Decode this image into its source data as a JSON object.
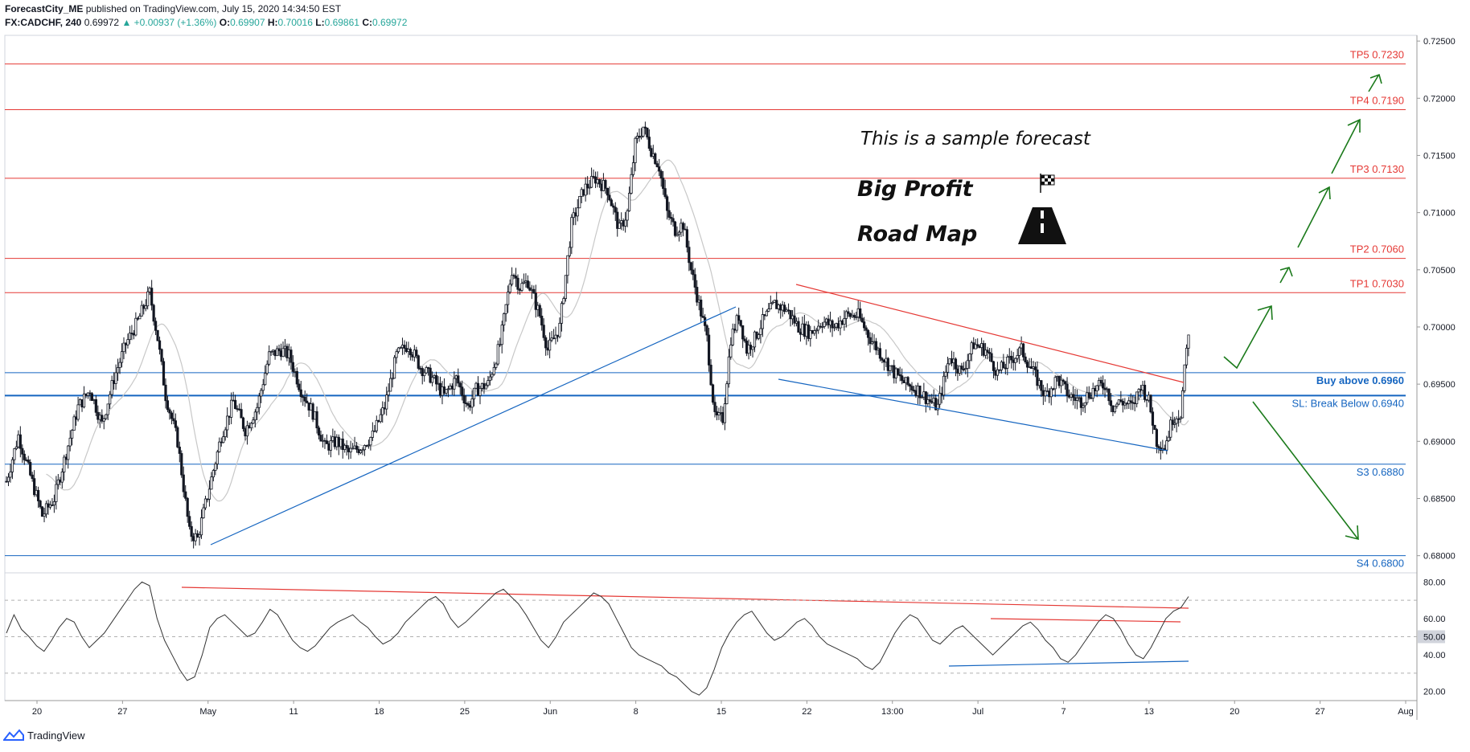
{
  "header": {
    "author": "ForecastCity_ME",
    "published": "published on TradingView.com, July 15, 2020 14:34:50 EST",
    "symbol": "FX:CADCHF, 240",
    "last": "0.69972",
    "change": "+0.00937 (+1.36%)",
    "o_label": "O:",
    "o": "0.69907",
    "h_label": "H:",
    "h": "0.70016",
    "l_label": "L:",
    "l": "0.69861",
    "c_label": "C:",
    "c": "0.69972"
  },
  "annotations": {
    "sample": "This is a sample forecast",
    "line1": "Big Profit",
    "line2": "Road Map"
  },
  "footer": {
    "brand": "TradingView"
  },
  "colors": {
    "red": "#e53935",
    "blue": "#1565c0",
    "green": "#1b7a1b",
    "up": "#26a69a",
    "candle": "#131722"
  },
  "chart_data": [
    {
      "type": "candlestick",
      "title": "FX:CADCHF, 240",
      "price_axis": {
        "range": [
          0.6785,
          0.7255
        ],
        "ticks": [
          "0.72500",
          "0.72000",
          "0.71500",
          "0.71000",
          "0.70500",
          "0.70000",
          "0.69500",
          "0.69000",
          "0.68500",
          "0.68000"
        ]
      },
      "time_axis": [
        "20",
        "27",
        "May",
        "11",
        "18",
        "25",
        "Jun",
        "8",
        "15",
        "22",
        "13:00",
        "Jul",
        "7",
        "13",
        "20",
        "27",
        "Aug"
      ],
      "levels": [
        {
          "label": "TP5 0.7230",
          "price": 0.723,
          "color": "red"
        },
        {
          "label": "TP4 0.7190",
          "price": 0.719,
          "color": "red"
        },
        {
          "label": "TP3 0.7130",
          "price": 0.713,
          "color": "red"
        },
        {
          "label": "TP2 0.7060",
          "price": 0.706,
          "color": "red"
        },
        {
          "label": "TP1 0.7030",
          "price": 0.703,
          "color": "red"
        },
        {
          "label": "Buy above 0.6960",
          "price": 0.696,
          "color": "blue"
        },
        {
          "label": "SL: Break Below 0.6940",
          "price": 0.694,
          "color": "blue"
        },
        {
          "label": "S3 0.6880",
          "price": 0.688,
          "color": "blue"
        },
        {
          "label": "S4 0.6800",
          "price": 0.68,
          "color": "blue"
        }
      ],
      "close_path": [
        [
          0,
          0.6865
        ],
        [
          6,
          0.6905
        ],
        [
          12,
          0.687
        ],
        [
          18,
          0.6835
        ],
        [
          24,
          0.685
        ],
        [
          30,
          0.689
        ],
        [
          36,
          0.693
        ],
        [
          42,
          0.6945
        ],
        [
          48,
          0.6915
        ],
        [
          54,
          0.6955
        ],
        [
          60,
          0.6985
        ],
        [
          66,
          0.7005
        ],
        [
          72,
          0.703
        ],
        [
          76,
          0.699
        ],
        [
          80,
          0.694
        ],
        [
          86,
          0.69
        ],
        [
          92,
          0.682
        ],
        [
          96,
          0.6815
        ],
        [
          102,
          0.686
        ],
        [
          108,
          0.6905
        ],
        [
          114,
          0.6935
        ],
        [
          120,
          0.691
        ],
        [
          126,
          0.693
        ],
        [
          132,
          0.6975
        ],
        [
          138,
          0.698
        ],
        [
          142,
          0.6975
        ],
        [
          148,
          0.6945
        ],
        [
          154,
          0.6925
        ],
        [
          160,
          0.6895
        ],
        [
          166,
          0.69
        ],
        [
          172,
          0.689
        ],
        [
          178,
          0.6895
        ],
        [
          184,
          0.6905
        ],
        [
          190,
          0.693
        ],
        [
          196,
          0.6975
        ],
        [
          202,
          0.6985
        ],
        [
          208,
          0.6965
        ],
        [
          214,
          0.6955
        ],
        [
          220,
          0.694
        ],
        [
          226,
          0.6955
        ],
        [
          232,
          0.693
        ],
        [
          236,
          0.6945
        ],
        [
          242,
          0.695
        ],
        [
          248,
          0.6985
        ],
        [
          254,
          0.705
        ],
        [
          258,
          0.7035
        ],
        [
          262,
          0.704
        ],
        [
          268,
          0.701
        ],
        [
          272,
          0.698
        ],
        [
          278,
          0.7
        ],
        [
          284,
          0.709
        ],
        [
          290,
          0.712
        ],
        [
          296,
          0.713
        ],
        [
          302,
          0.712
        ],
        [
          308,
          0.7085
        ],
        [
          312,
          0.71
        ],
        [
          316,
          0.716
        ],
        [
          320,
          0.7175
        ],
        [
          324,
          0.7155
        ],
        [
          328,
          0.714
        ],
        [
          332,
          0.71
        ],
        [
          336,
          0.7085
        ],
        [
          340,
          0.709
        ],
        [
          344,
          0.705
        ],
        [
          348,
          0.702
        ],
        [
          352,
          0.699
        ],
        [
          356,
          0.692
        ],
        [
          360,
          0.692
        ],
        [
          364,
          0.699
        ],
        [
          368,
          0.701
        ],
        [
          372,
          0.698
        ],
        [
          376,
          0.699
        ],
        [
          380,
          0.7005
        ],
        [
          386,
          0.702
        ],
        [
          392,
          0.7015
        ],
        [
          398,
          0.7
        ],
        [
          404,
          0.6995
        ],
        [
          410,
          0.7005
        ],
        [
          416,
          0.7
        ],
        [
          422,
          0.701
        ],
        [
          428,
          0.701
        ],
        [
          434,
          0.699
        ],
        [
          440,
          0.6975
        ],
        [
          446,
          0.696
        ],
        [
          452,
          0.695
        ],
        [
          458,
          0.6945
        ],
        [
          464,
          0.6935
        ],
        [
          468,
          0.693
        ],
        [
          474,
          0.6975
        ],
        [
          480,
          0.696
        ],
        [
          486,
          0.6985
        ],
        [
          492,
          0.698
        ],
        [
          498,
          0.696
        ],
        [
          504,
          0.697
        ],
        [
          510,
          0.698
        ],
        [
          516,
          0.696
        ],
        [
          522,
          0.694
        ],
        [
          528,
          0.6955
        ],
        [
          534,
          0.694
        ],
        [
          540,
          0.6935
        ],
        [
          546,
          0.6945
        ],
        [
          552,
          0.695
        ],
        [
          556,
          0.693
        ],
        [
          560,
          0.6935
        ],
        [
          566,
          0.693
        ],
        [
          570,
          0.695
        ],
        [
          574,
          0.6935
        ],
        [
          578,
          0.69
        ],
        [
          582,
          0.6895
        ],
        [
          586,
          0.692
        ],
        [
          590,
          0.6925
        ],
        [
          594,
          0.6997
        ]
      ],
      "rsi": {
        "range": [
          15,
          85
        ],
        "ticks": [
          "80.00",
          "60.00",
          "50.00",
          "40.00",
          "20.00"
        ],
        "current": "50.00",
        "values": [
          52,
          62,
          54,
          50,
          45,
          42,
          48,
          55,
          60,
          58,
          50,
          44,
          48,
          52,
          58,
          64,
          70,
          76,
          80,
          78,
          60,
          48,
          40,
          32,
          26,
          28,
          40,
          55,
          60,
          62,
          58,
          54,
          50,
          52,
          58,
          65,
          62,
          55,
          48,
          44,
          42,
          45,
          50,
          55,
          58,
          60,
          62,
          58,
          55,
          50,
          46,
          48,
          52,
          58,
          62,
          66,
          70,
          72,
          68,
          60,
          55,
          58,
          62,
          66,
          70,
          74,
          76,
          72,
          68,
          62,
          55,
          48,
          44,
          50,
          58,
          62,
          66,
          70,
          74,
          72,
          68,
          60,
          52,
          44,
          40,
          38,
          36,
          34,
          30,
          28,
          24,
          20,
          18,
          22,
          32,
          44,
          52,
          58,
          62,
          64,
          58,
          52,
          48,
          50,
          54,
          58,
          60,
          56,
          50,
          46,
          44,
          42,
          40,
          38,
          34,
          32,
          36,
          44,
          52,
          58,
          62,
          60,
          54,
          48,
          46,
          50,
          54,
          56,
          52,
          48,
          44,
          40,
          44,
          48,
          52,
          56,
          58,
          54,
          48,
          44,
          38,
          36,
          40,
          46,
          52,
          58,
          62,
          60,
          54,
          46,
          40,
          38,
          44,
          52,
          60,
          64,
          66,
          72
        ]
      }
    }
  ]
}
